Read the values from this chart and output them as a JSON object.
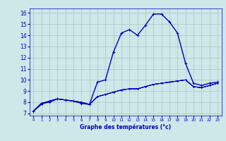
{
  "title": "Graphe des températures (°c)",
  "bg_color": "#cde8e8",
  "grid_color": "#aacccc",
  "line_color": "#0000bb",
  "x_ticks": [
    0,
    1,
    2,
    3,
    4,
    5,
    6,
    7,
    8,
    9,
    10,
    11,
    12,
    13,
    14,
    15,
    16,
    17,
    18,
    19,
    20,
    21,
    22,
    23
  ],
  "y_ticks": [
    7,
    8,
    9,
    10,
    11,
    12,
    13,
    14,
    15,
    16
  ],
  "xlim": [
    -0.5,
    23.5
  ],
  "ylim": [
    6.8,
    16.4
  ],
  "series": [
    [
      7.2,
      7.9,
      8.0,
      8.3,
      8.2,
      8.1,
      7.9,
      7.8,
      9.8,
      10.0,
      12.5,
      14.2,
      14.5,
      14.0,
      14.9,
      15.9,
      15.9,
      15.2,
      14.2,
      11.5,
      9.7,
      9.5,
      9.7,
      9.8
    ],
    [
      7.2,
      7.8,
      8.1,
      8.3,
      8.2,
      8.1,
      8.0,
      7.8,
      8.5,
      8.7,
      8.9,
      9.1,
      9.2,
      9.2,
      9.4,
      9.6,
      9.7,
      9.8,
      9.9,
      10.0,
      9.4,
      9.3,
      9.5,
      9.7
    ],
    [
      7.2,
      7.8,
      8.1,
      8.3,
      8.2,
      8.1,
      8.0,
      7.8,
      8.5,
      8.7,
      8.9,
      9.1,
      9.2,
      9.2,
      9.4,
      9.6,
      9.7,
      9.8,
      9.9,
      10.0,
      9.4,
      9.3,
      9.5,
      9.7
    ],
    [
      7.2,
      7.9,
      8.1,
      8.3,
      8.2,
      8.1,
      8.0,
      7.8,
      8.5,
      8.7,
      8.9,
      9.1,
      9.2,
      9.2,
      9.4,
      9.6,
      9.7,
      9.8,
      9.9,
      10.0,
      9.4,
      9.3,
      9.5,
      9.7
    ],
    [
      7.2,
      7.9,
      8.1,
      8.3,
      8.2,
      8.1,
      8.0,
      7.8,
      8.5,
      8.7,
      8.9,
      9.1,
      9.2,
      9.2,
      9.4,
      9.6,
      9.7,
      9.8,
      9.9,
      10.0,
      9.4,
      9.3,
      9.5,
      9.7
    ]
  ]
}
